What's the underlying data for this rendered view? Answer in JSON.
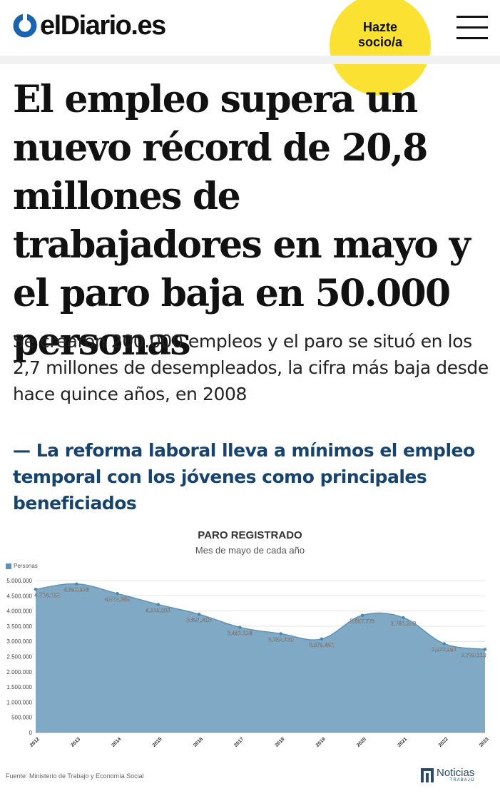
{
  "header": {
    "logo_text": "elDiario.es",
    "join_line1": "Hazte",
    "join_line2": "socio/a"
  },
  "article": {
    "headline": "El empleo supera un nuevo récord de 20,8 millones de trabajadores en mayo y el paro baja en 50.000 personas",
    "subhead": "Se crearon 200.000 empleos y el paro se situó en los 2,7 millones de desempleados, la cifra más baja desde hace quince años, en 2008",
    "related": "— La reforma laboral lleva a mínimos el empleo temporal con los jóvenes como principales beneficiados"
  },
  "chart_data": {
    "type": "area",
    "title": "PARO REGISTRADO",
    "subtitle": "Mes de mayo de cada año",
    "legend_label": "Personas",
    "categories": [
      "2012",
      "2013",
      "2014",
      "2015",
      "2016",
      "2017",
      "2018",
      "2019",
      "2020",
      "2021",
      "2022",
      "2023"
    ],
    "series": [
      {
        "name": "Personas",
        "values": [
          4714122,
          4890928,
          4572385,
          4215031,
          3891403,
          3461128,
          3252130,
          3079491,
          3857776,
          3781250,
          2922991,
          2739110
        ]
      }
    ],
    "value_labels": [
      "4.714.122",
      "4.890.928",
      "4.572.385",
      "4.215.031",
      "3.891.403",
      "3.461.128",
      "3.252.130",
      "3.079.491",
      "3.857.776",
      "3.781.250",
      "2.922.991",
      "2.739.110"
    ],
    "y_ticks": [
      0,
      500000,
      1000000,
      1500000,
      2000000,
      2500000,
      3000000,
      3500000,
      4000000,
      4500000,
      5000000
    ],
    "y_tick_labels": [
      "0",
      "500.000",
      "1.000.000",
      "1.500.000",
      "2.000.000",
      "2.500.000",
      "3.000.000",
      "3.500.000",
      "4.000.000",
      "4.500.000",
      "5.000.000"
    ],
    "ylim": [
      0,
      5000000
    ],
    "grid": true,
    "legend_position": "top-left",
    "color": "#7fa9c4",
    "line_color": "#5e93b5",
    "source": "Fuente: Ministerio de Trabajo y Economía Social",
    "brand_name": "Noticias",
    "brand_sub": "TRABAJO"
  }
}
